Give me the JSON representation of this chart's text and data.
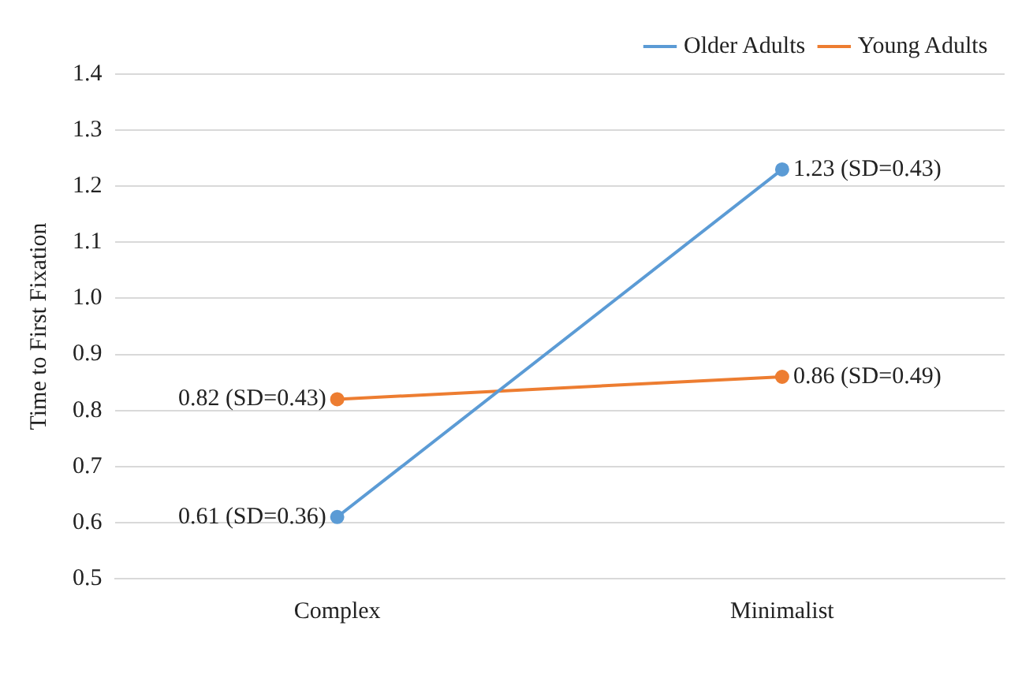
{
  "chart_data": {
    "type": "line",
    "ylabel": "Time to First Fixation",
    "categories": [
      "Complex",
      "Minimalist"
    ],
    "series": [
      {
        "name": "Older Adults",
        "color": "#5b9bd5",
        "values": [
          0.61,
          1.23
        ],
        "value_labels": [
          "0.61 (SD=0.36)",
          "1.23 (SD=0.43)"
        ]
      },
      {
        "name": "Young Adults",
        "color": "#ed7d31",
        "values": [
          0.82,
          0.86
        ],
        "value_labels": [
          "0.82 (SD=0.43)",
          "0.86 (SD=0.49)"
        ]
      }
    ],
    "ylim": [
      0.5,
      1.4
    ],
    "yticks": [
      0.5,
      0.6,
      0.7,
      0.8,
      0.9,
      {
        "value": 1,
        "label": "1.0"
      },
      1.1,
      1.2,
      1.3,
      1.4
    ],
    "grid": "y",
    "legend": "top right",
    "marker": "circle",
    "line_style": "solid"
  }
}
